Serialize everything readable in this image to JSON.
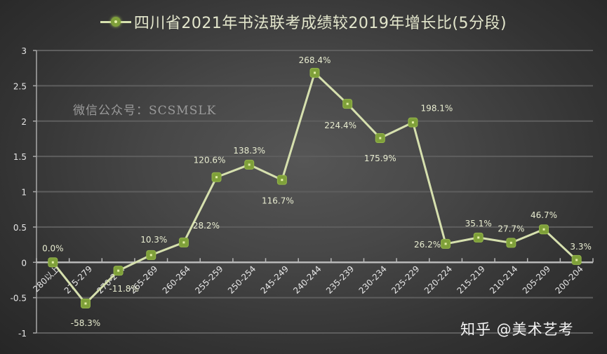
{
  "chart_data": {
    "type": "line",
    "title": "四川省2021年书法联考成绩较2019年增长比(5分段)",
    "legend": {
      "label": "四川省2021年书法联考成绩较2019年增长比(5分段)",
      "position": "top"
    },
    "xlabel": "",
    "ylabel": "",
    "ylim": [
      -1,
      3
    ],
    "yticks": [
      -1,
      -0.5,
      0,
      0.5,
      1,
      1.5,
      2,
      2.5,
      3
    ],
    "ytick_labels": [
      "-1",
      "-0.5",
      "0",
      "0.5",
      "1",
      "1.5",
      "2",
      "2.5",
      "3"
    ],
    "grid": true,
    "categories": [
      "280以上",
      "275-279",
      "270-274",
      "265-269",
      "260-264",
      "255-259",
      "250-254",
      "245-249",
      "240-244",
      "235-239",
      "230-234",
      "225-229",
      "220-224",
      "215-219",
      "210-214",
      "205-209",
      "200-204"
    ],
    "series": [
      {
        "name": "四川省2021年书法联考成绩较2019年增长比(5分段)",
        "values": [
          0.0,
          -0.583,
          -0.118,
          0.103,
          0.282,
          1.206,
          1.383,
          1.167,
          2.684,
          2.244,
          1.759,
          1.981,
          0.262,
          0.351,
          0.277,
          0.467,
          0.033
        ],
        "data_labels": [
          "0.0%",
          "-58.3%",
          "-11.8%",
          "10.3%",
          "28.2%",
          "120.6%",
          "138.3%",
          "116.7%",
          "268.4%",
          "224.4%",
          "175.9%",
          "198.1%",
          "26.2%",
          "35.1%",
          "27.7%",
          "46.7%",
          "3.3%"
        ],
        "line_color": "#d6e0ae",
        "marker_color": "#7fa03a"
      }
    ]
  },
  "annotations": {
    "watermark": "微信公众号：SCSMSLK",
    "brand": "知乎 @美术艺考"
  },
  "colors": {
    "background": "#404040",
    "line": "#d6e0ae",
    "marker_fill": "#7fa03a",
    "marker_center": "#e4f0a8",
    "grid": "#5e5e5e",
    "axis": "#a8a8a8",
    "text": "#e6e6e6",
    "label_text": "#e8ecd0"
  }
}
